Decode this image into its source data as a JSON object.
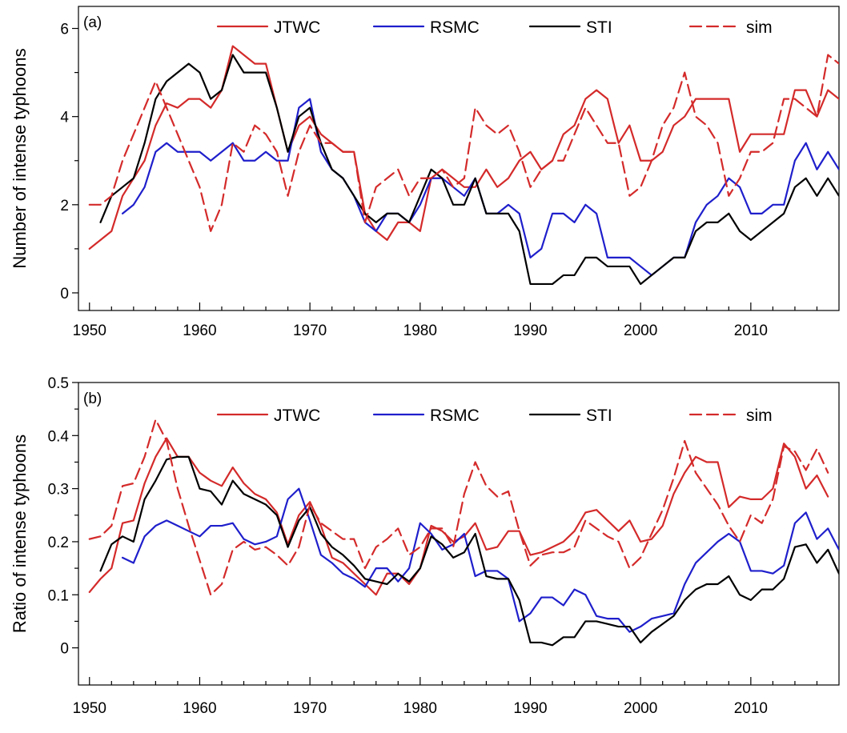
{
  "colors": {
    "JTWC": "#d42a2a",
    "RSMC": "#1f1fcc",
    "STI": "#000000",
    "sim": "#d42a2a"
  },
  "chart_data": [
    {
      "type": "line",
      "panel_label": "(a)",
      "ylabel": "Number of intense typhoons",
      "xlim": [
        1949,
        2018
      ],
      "ylim": [
        -0.4,
        6.5
      ],
      "xticks": [
        1950,
        1960,
        1970,
        1980,
        1990,
        2000,
        2010
      ],
      "yticks": [
        0,
        2,
        4,
        6
      ],
      "legend": {
        "placement": "top",
        "entries": [
          "JTWC",
          "RSMC",
          "STI",
          "sim"
        ]
      },
      "series": [
        {
          "name": "JTWC",
          "dash": false,
          "start": 1950,
          "values": [
            1.0,
            1.2,
            1.4,
            2.2,
            2.6,
            3.0,
            3.8,
            4.3,
            4.2,
            4.4,
            4.4,
            4.2,
            4.6,
            5.6,
            5.4,
            5.2,
            5.2,
            4.2,
            3.2,
            3.8,
            4.0,
            3.6,
            3.4,
            3.2,
            3.2,
            1.8,
            1.4,
            1.2,
            1.6,
            1.6,
            1.4,
            2.6,
            2.8,
            2.6,
            2.4,
            2.4,
            2.8,
            2.4,
            2.6,
            3.0,
            3.2,
            2.8,
            3.0,
            3.6,
            3.8,
            4.4,
            4.6,
            4.4,
            3.4,
            3.8,
            3.0,
            3.0,
            3.2,
            3.8,
            4.0,
            4.4,
            4.4,
            4.4,
            4.4,
            3.2,
            3.6,
            3.6,
            3.6,
            3.6,
            4.6,
            4.6,
            4.0,
            4.6,
            4.4
          ]
        },
        {
          "name": "RSMC",
          "dash": false,
          "start": 1953,
          "values": [
            1.8,
            2.0,
            2.4,
            3.2,
            3.4,
            3.2,
            3.2,
            3.2,
            3.0,
            3.2,
            3.4,
            3.0,
            3.0,
            3.2,
            3.0,
            3.0,
            4.2,
            4.4,
            3.2,
            2.8,
            2.6,
            2.2,
            1.6,
            1.4,
            1.8,
            1.8,
            1.6,
            2.0,
            2.6,
            2.6,
            2.4,
            2.2,
            2.6,
            1.8,
            1.8,
            2.0,
            1.8,
            0.8,
            1.0,
            1.8,
            1.8,
            1.6,
            2.0,
            1.8,
            0.8,
            0.8,
            0.8,
            0.6,
            0.4,
            0.6,
            0.8,
            0.8,
            1.6,
            2.0,
            2.2,
            2.6,
            2.4,
            1.8,
            1.8,
            2.0,
            2.0,
            3.0,
            3.4,
            2.8,
            3.2,
            2.8
          ]
        },
        {
          "name": "STI",
          "dash": false,
          "start": 1951,
          "values": [
            1.6,
            2.2,
            2.4,
            2.6,
            3.4,
            4.4,
            4.8,
            5.0,
            5.2,
            5.0,
            4.4,
            4.6,
            5.4,
            5.0,
            5.0,
            5.0,
            4.2,
            3.2,
            4.0,
            4.2,
            3.4,
            2.8,
            2.6,
            2.2,
            1.8,
            1.6,
            1.8,
            1.8,
            1.6,
            2.2,
            2.8,
            2.6,
            2.0,
            2.0,
            2.6,
            1.8,
            1.8,
            1.8,
            1.4,
            0.2,
            0.2,
            0.2,
            0.4,
            0.4,
            0.8,
            0.8,
            0.6,
            0.6,
            0.6,
            0.2,
            0.4,
            0.6,
            0.8,
            0.8,
            1.4,
            1.6,
            1.6,
            1.8,
            1.4,
            1.2,
            1.4,
            1.6,
            1.8,
            2.4,
            2.6,
            2.2,
            2.6,
            2.2
          ]
        },
        {
          "name": "sim",
          "dash": true,
          "start": 1950,
          "values": [
            2.0,
            2.0,
            2.2,
            3.0,
            3.6,
            4.2,
            4.8,
            4.2,
            3.6,
            3.0,
            2.4,
            1.4,
            2.0,
            3.4,
            3.2,
            3.8,
            3.6,
            3.2,
            2.2,
            3.2,
            3.8,
            3.4,
            3.4,
            3.2,
            3.2,
            1.6,
            2.4,
            2.6,
            2.8,
            2.2,
            2.6,
            2.6,
            2.8,
            2.4,
            2.6,
            4.2,
            3.8,
            3.6,
            3.8,
            3.2,
            2.4,
            2.8,
            3.0,
            3.0,
            3.6,
            4.2,
            3.8,
            3.4,
            3.4,
            2.2,
            2.4,
            3.0,
            3.8,
            4.2,
            5.0,
            4.0,
            3.8,
            3.4,
            2.2,
            2.6,
            3.2,
            3.2,
            3.4,
            4.4,
            4.4,
            4.2,
            4.0,
            5.4,
            5.2
          ]
        }
      ]
    },
    {
      "type": "line",
      "panel_label": "(b)",
      "ylabel": "Ratio of intense typhoons",
      "xlim": [
        1949,
        2018
      ],
      "ylim": [
        -0.07,
        0.5
      ],
      "xticks": [
        1950,
        1960,
        1970,
        1980,
        1990,
        2000,
        2010
      ],
      "yticks": [
        0,
        0.1,
        0.2,
        0.3,
        0.4,
        0.5
      ],
      "ytick_labels": [
        "0",
        "0.1",
        "0.2",
        "0.3",
        "0.4",
        "0.5"
      ],
      "legend": {
        "placement": "top",
        "entries": [
          "JTWC",
          "RSMC",
          "STI",
          "sim"
        ]
      },
      "series": [
        {
          "name": "JTWC",
          "dash": false,
          "start": 1950,
          "values": [
            0.105,
            0.13,
            0.15,
            0.235,
            0.24,
            0.31,
            0.36,
            0.395,
            0.36,
            0.36,
            0.33,
            0.315,
            0.305,
            0.34,
            0.31,
            0.29,
            0.28,
            0.255,
            0.195,
            0.25,
            0.275,
            0.23,
            0.17,
            0.16,
            0.14,
            0.12,
            0.1,
            0.14,
            0.14,
            0.12,
            0.15,
            0.23,
            0.22,
            0.2,
            0.21,
            0.235,
            0.185,
            0.19,
            0.22,
            0.22,
            0.175,
            0.18,
            0.19,
            0.2,
            0.22,
            0.255,
            0.26,
            0.24,
            0.22,
            0.24,
            0.2,
            0.205,
            0.23,
            0.29,
            0.33,
            0.36,
            0.35,
            0.35,
            0.265,
            0.285,
            0.28,
            0.28,
            0.3,
            0.385,
            0.36,
            0.3,
            0.325,
            0.285
          ]
        },
        {
          "name": "RSMC",
          "dash": false,
          "start": 1953,
          "values": [
            0.17,
            0.16,
            0.21,
            0.23,
            0.24,
            0.23,
            0.22,
            0.21,
            0.23,
            0.23,
            0.235,
            0.205,
            0.195,
            0.2,
            0.21,
            0.28,
            0.3,
            0.24,
            0.175,
            0.16,
            0.14,
            0.13,
            0.115,
            0.15,
            0.15,
            0.125,
            0.15,
            0.235,
            0.215,
            0.185,
            0.195,
            0.215,
            0.135,
            0.145,
            0.145,
            0.13,
            0.05,
            0.065,
            0.095,
            0.095,
            0.08,
            0.11,
            0.1,
            0.06,
            0.055,
            0.055,
            0.03,
            0.04,
            0.055,
            0.06,
            0.065,
            0.12,
            0.16,
            0.18,
            0.2,
            0.215,
            0.2,
            0.145,
            0.145,
            0.14,
            0.155,
            0.235,
            0.255,
            0.205,
            0.225,
            0.185
          ]
        },
        {
          "name": "STI",
          "dash": false,
          "start": 1951,
          "values": [
            0.145,
            0.195,
            0.21,
            0.2,
            0.28,
            0.315,
            0.355,
            0.36,
            0.36,
            0.3,
            0.295,
            0.27,
            0.315,
            0.29,
            0.28,
            0.27,
            0.25,
            0.19,
            0.24,
            0.265,
            0.215,
            0.19,
            0.175,
            0.155,
            0.13,
            0.125,
            0.12,
            0.14,
            0.125,
            0.15,
            0.21,
            0.195,
            0.17,
            0.18,
            0.215,
            0.135,
            0.13,
            0.13,
            0.09,
            0.01,
            0.01,
            0.005,
            0.02,
            0.02,
            0.05,
            0.05,
            0.045,
            0.04,
            0.04,
            0.01,
            0.03,
            0.045,
            0.06,
            0.09,
            0.11,
            0.12,
            0.12,
            0.135,
            0.1,
            0.09,
            0.11,
            0.11,
            0.13,
            0.19,
            0.195,
            0.16,
            0.185,
            0.14
          ]
        },
        {
          "name": "sim",
          "dash": true,
          "start": 1950,
          "values": [
            0.205,
            0.21,
            0.23,
            0.305,
            0.31,
            0.36,
            0.43,
            0.39,
            0.3,
            0.23,
            0.165,
            0.1,
            0.12,
            0.185,
            0.2,
            0.185,
            0.19,
            0.175,
            0.155,
            0.19,
            0.27,
            0.235,
            0.22,
            0.205,
            0.205,
            0.15,
            0.19,
            0.205,
            0.225,
            0.175,
            0.19,
            0.225,
            0.225,
            0.19,
            0.29,
            0.35,
            0.305,
            0.285,
            0.295,
            0.22,
            0.155,
            0.175,
            0.18,
            0.18,
            0.19,
            0.24,
            0.225,
            0.21,
            0.2,
            0.15,
            0.17,
            0.215,
            0.26,
            0.32,
            0.39,
            0.33,
            0.3,
            0.27,
            0.23,
            0.2,
            0.25,
            0.235,
            0.28,
            0.38,
            0.37,
            0.335,
            0.375,
            0.33
          ]
        }
      ]
    }
  ]
}
